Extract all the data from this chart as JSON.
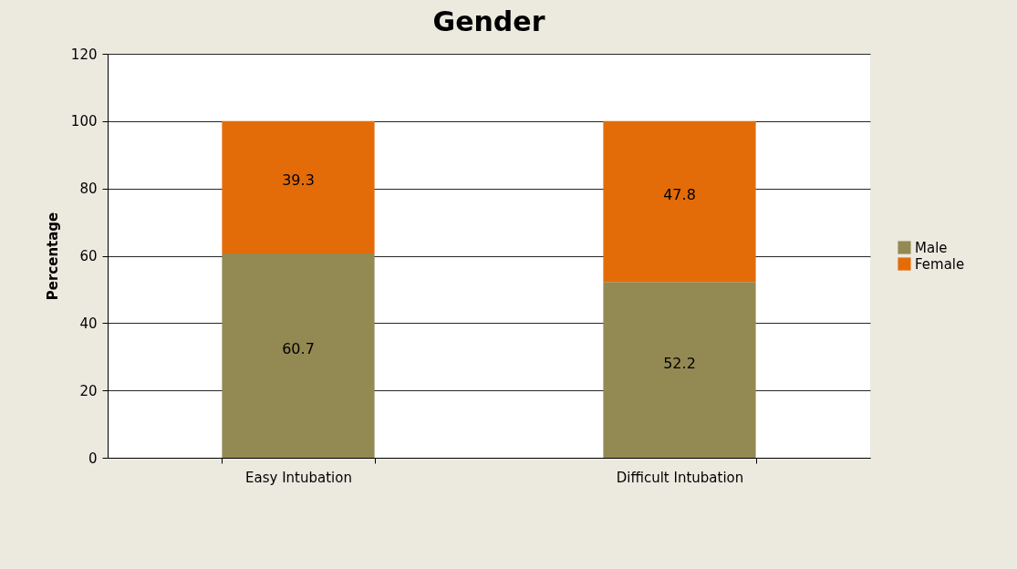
{
  "chart_data": {
    "type": "bar",
    "title": "Gender",
    "ylabel": "Percentage",
    "categories": [
      "Easy Intubation",
      "Difficult Intubation"
    ],
    "series": [
      {
        "name": "Male",
        "color": "#938953",
        "values": [
          60.7,
          52.2
        ]
      },
      {
        "name": "Female",
        "color": "#e36c09",
        "values": [
          39.3,
          47.8
        ]
      }
    ],
    "stacked": true,
    "data_labels": true,
    "ylim": [
      0,
      120
    ],
    "yticks": [
      0,
      20,
      40,
      60,
      80,
      100,
      120
    ],
    "grid": "y",
    "legend": "right"
  }
}
